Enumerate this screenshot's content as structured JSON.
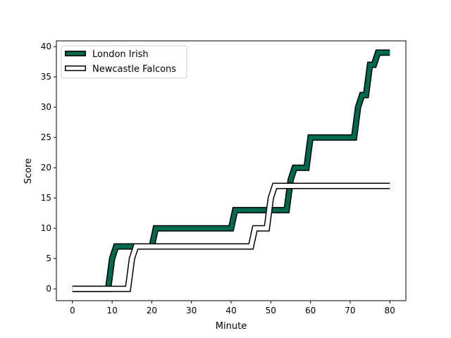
{
  "chart_data": {
    "type": "line",
    "title": "",
    "xlabel": "Minute",
    "ylabel": "Score",
    "xlim": [
      -4.05,
      84.05
    ],
    "ylim": [
      -1.95,
      40.95
    ],
    "xticks": [
      0,
      10,
      20,
      30,
      40,
      50,
      60,
      70,
      80
    ],
    "yticks": [
      0,
      5,
      10,
      15,
      20,
      25,
      30,
      35,
      40
    ],
    "legend_position": "upper-left",
    "grid": false,
    "series": [
      {
        "name": "London Irish",
        "style": "thick-outlined",
        "fill_color": "#006a4e",
        "edge_color": "#000000",
        "points": [
          [
            0,
            0
          ],
          [
            9,
            0
          ],
          [
            10,
            5
          ],
          [
            11,
            7
          ],
          [
            20,
            7
          ],
          [
            21,
            10
          ],
          [
            40,
            10
          ],
          [
            41,
            13
          ],
          [
            54,
            13
          ],
          [
            55,
            18
          ],
          [
            56,
            20
          ],
          [
            59,
            20
          ],
          [
            60,
            25
          ],
          [
            71,
            25
          ],
          [
            72,
            30
          ],
          [
            73,
            32
          ],
          [
            74,
            32
          ],
          [
            75,
            37
          ],
          [
            76,
            37
          ],
          [
            77,
            39
          ],
          [
            80,
            39
          ]
        ]
      },
      {
        "name": "Newcastle Falcons",
        "style": "thick-outlined",
        "fill_color": "#ffffff",
        "edge_color": "#000000",
        "points": [
          [
            0,
            0
          ],
          [
            14,
            0
          ],
          [
            15,
            5
          ],
          [
            16,
            7
          ],
          [
            45,
            7
          ],
          [
            46,
            10
          ],
          [
            49,
            10
          ],
          [
            50,
            15
          ],
          [
            51,
            17
          ],
          [
            80,
            17
          ]
        ]
      }
    ]
  }
}
